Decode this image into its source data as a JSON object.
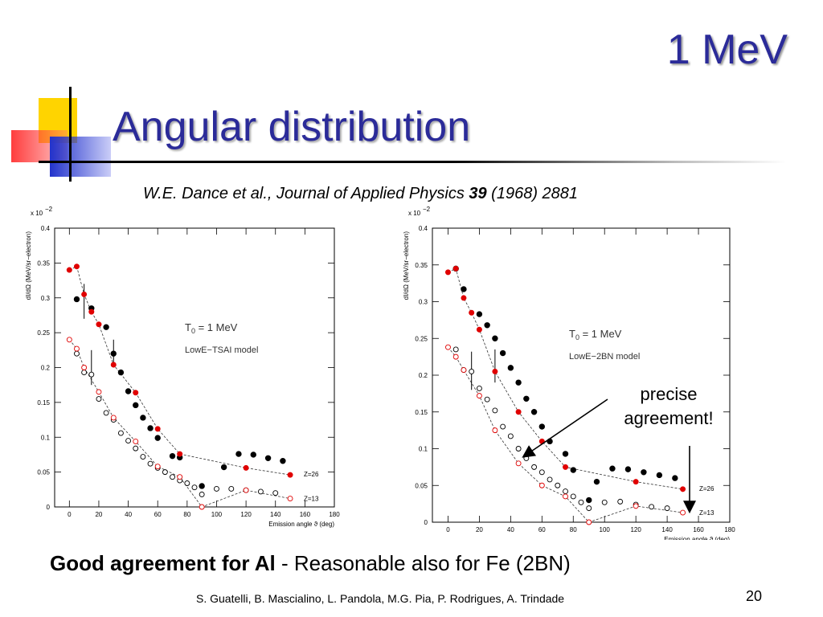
{
  "slide": {
    "corner_title": "1 MeV",
    "title": "Angular distribution",
    "citation_text": "W.E. Dance et al., Journal of Applied Physics ",
    "citation_volume": "39",
    "citation_rest": " (1968) 2881",
    "annotation_line1": "precise",
    "annotation_line2": "agreement!",
    "bottom_bold": "Good agreement for Al",
    "bottom_dash": " - ",
    "bottom_rest": " Reasonable also for Fe (2BN)",
    "footer": "S. Guatelli, B. Mascialino, L. Pandola, M.G. Pia, P. Rodrigues, A. Trindade",
    "page_number": "20"
  },
  "colors": {
    "title_blue": "#2b2b99",
    "sim_red": "#e00000",
    "exp_black": "#000000"
  },
  "chart_data": [
    {
      "type": "scatter",
      "multiplier_label": "x 10",
      "multiplier_exp": "−2",
      "ylabel": "dI/dΩ (MeV/sr−electron)",
      "xlabel": "Emission angle ϑ (deg)",
      "xlim": [
        -10,
        180
      ],
      "ylim": [
        0,
        0.4
      ],
      "xticks": [
        "0",
        "20",
        "40",
        "60",
        "80",
        "100",
        "120",
        "140",
        "160",
        "180"
      ],
      "yticks": [
        "0",
        "0.05",
        "0.1",
        "0.15",
        "0.2",
        "0.25",
        "0.3",
        "0.35",
        "0.4"
      ],
      "model_label_T": "T",
      "model_label_sub": "0",
      "model_label_val": " = 1 MeV",
      "model_label": "LowE−TSAI model",
      "curve_labels": [
        "Z=26",
        "Z=13"
      ],
      "series": [
        {
          "name": "Z=26",
          "marker": "exp_filled",
          "x": [
            5,
            15,
            25,
            30,
            35,
            40,
            45,
            50,
            55,
            60,
            70,
            75,
            90,
            105,
            115,
            125,
            135,
            145
          ],
          "y": [
            0.298,
            0.285,
            0.258,
            0.22,
            0.193,
            0.166,
            0.146,
            0.128,
            0.113,
            0.099,
            0.073,
            0.071,
            0.03,
            0.057,
            0.076,
            0.075,
            0.07,
            0.066
          ]
        },
        {
          "name": "Z=26",
          "marker": "sim_filled",
          "x": [
            0,
            5,
            10,
            15,
            20,
            30,
            45,
            60,
            75,
            120,
            150
          ],
          "y": [
            0.34,
            0.345,
            0.305,
            0.28,
            0.262,
            0.204,
            0.164,
            0.112,
            0.076,
            0.056,
            0.046
          ]
        },
        {
          "name": "Z=13",
          "marker": "exp_open",
          "x": [
            5,
            10,
            15,
            20,
            25,
            30,
            35,
            40,
            45,
            50,
            55,
            60,
            65,
            70,
            75,
            80,
            85,
            90,
            100,
            110,
            120,
            130,
            140
          ],
          "y": [
            0.22,
            0.193,
            0.19,
            0.155,
            0.135,
            0.125,
            0.106,
            0.095,
            0.084,
            0.072,
            0.062,
            0.056,
            0.05,
            0.043,
            0.038,
            0.034,
            0.028,
            0.018,
            0.026,
            0.026,
            0.024,
            0.022,
            0.02
          ]
        },
        {
          "name": "Z=13",
          "marker": "sim_open",
          "x": [
            0,
            5,
            10,
            20,
            30,
            45,
            60,
            75,
            90,
            120,
            150
          ],
          "y": [
            0.24,
            0.227,
            0.2,
            0.165,
            0.128,
            0.094,
            0.058,
            0.043,
            0.0,
            0.024,
            0.012
          ]
        }
      ],
      "error_bars": [
        {
          "x": 10,
          "y_low": 0.27,
          "y_high": 0.32
        },
        {
          "x": 15,
          "y_low": 0.175,
          "y_high": 0.225
        },
        {
          "x": 30,
          "y_low": 0.2,
          "y_high": 0.24
        }
      ]
    },
    {
      "type": "scatter",
      "multiplier_label": "x 10",
      "multiplier_exp": "−2",
      "ylabel": "dI/dΩ (MeV/sr−electron)",
      "xlabel": "Emission angle ϑ (deg)",
      "xlim": [
        -10,
        180
      ],
      "ylim": [
        0,
        0.4
      ],
      "xticks": [
        "0",
        "20",
        "40",
        "60",
        "80",
        "100",
        "120",
        "140",
        "160",
        "180"
      ],
      "yticks": [
        "0",
        "0.05",
        "0.1",
        "0.15",
        "0.2",
        "0.25",
        "0.3",
        "0.35",
        "0.4"
      ],
      "model_label_T": "T",
      "model_label_sub": "0",
      "model_label_val": " = 1 MeV",
      "model_label": "LowE−2BN model",
      "curve_labels": [
        "Z=26",
        "Z=13"
      ],
      "series": [
        {
          "name": "Z=26",
          "marker": "exp_filled",
          "x": [
            5,
            10,
            20,
            25,
            30,
            35,
            40,
            45,
            50,
            55,
            60,
            65,
            75,
            80,
            90,
            95,
            105,
            115,
            125,
            135,
            145
          ],
          "y": [
            0.345,
            0.317,
            0.283,
            0.268,
            0.25,
            0.23,
            0.21,
            0.19,
            0.168,
            0.15,
            0.13,
            0.11,
            0.093,
            0.071,
            0.03,
            0.055,
            0.073,
            0.072,
            0.068,
            0.064,
            0.06
          ]
        },
        {
          "name": "Z=26",
          "marker": "sim_filled",
          "x": [
            0,
            5,
            10,
            15,
            20,
            30,
            45,
            60,
            75,
            120,
            150
          ],
          "y": [
            0.34,
            0.345,
            0.305,
            0.285,
            0.262,
            0.205,
            0.15,
            0.11,
            0.075,
            0.055,
            0.045
          ]
        },
        {
          "name": "Z=13",
          "marker": "exp_open",
          "x": [
            5,
            10,
            15,
            20,
            25,
            30,
            35,
            40,
            45,
            50,
            55,
            60,
            65,
            70,
            75,
            80,
            85,
            90,
            100,
            110,
            120,
            130,
            140
          ],
          "y": [
            0.235,
            0.207,
            0.205,
            0.182,
            0.167,
            0.152,
            0.13,
            0.117,
            0.1,
            0.087,
            0.075,
            0.068,
            0.058,
            0.05,
            0.042,
            0.035,
            0.027,
            0.019,
            0.027,
            0.028,
            0.024,
            0.021,
            0.019
          ]
        },
        {
          "name": "Z=13",
          "marker": "sim_open",
          "x": [
            0,
            5,
            10,
            20,
            30,
            45,
            60,
            75,
            90,
            120,
            150
          ],
          "y": [
            0.238,
            0.225,
            0.207,
            0.172,
            0.125,
            0.08,
            0.05,
            0.035,
            0.0,
            0.022,
            0.013
          ]
        }
      ],
      "error_bars": [
        {
          "x": 15,
          "y_low": 0.18,
          "y_high": 0.232
        },
        {
          "x": 30,
          "y_low": 0.19,
          "y_high": 0.235
        }
      ]
    }
  ]
}
